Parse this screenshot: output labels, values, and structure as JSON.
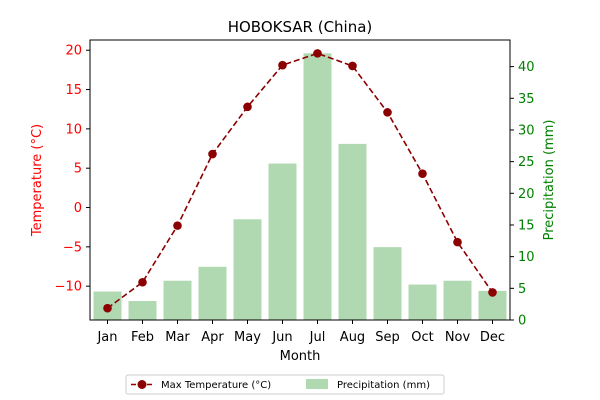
{
  "chart_data": {
    "type": "bar+line",
    "title": "HOBOKSAR (China)",
    "xlabel": "Month",
    "ylabel_left": "Temperature (°C)",
    "ylabel_right": "Precipitation (mm)",
    "categories": [
      "Jan",
      "Feb",
      "Mar",
      "Apr",
      "May",
      "Jun",
      "Jul",
      "Aug",
      "Sep",
      "Oct",
      "Nov",
      "Dec"
    ],
    "ylim_left": [
      -14.3,
      21.3
    ],
    "ylim_right": [
      0,
      44.2
    ],
    "yticks_left": [
      -10,
      -5,
      0,
      5,
      10,
      15,
      20
    ],
    "yticks_right": [
      0,
      5,
      10,
      15,
      20,
      25,
      30,
      35,
      40
    ],
    "series": [
      {
        "name": "Max Temperature (°C)",
        "kind": "line",
        "axis": "left",
        "color": "#8b0000",
        "values": [
          -12.8,
          -9.5,
          -2.3,
          6.8,
          12.8,
          18.1,
          19.6,
          18.0,
          12.1,
          4.3,
          -4.4,
          -10.8
        ]
      },
      {
        "name": "Precipitation (mm)",
        "kind": "bar",
        "axis": "right",
        "color": "#b1d9b1",
        "values": [
          4.5,
          3.0,
          6.2,
          8.4,
          15.9,
          24.7,
          42.1,
          27.8,
          11.5,
          5.6,
          6.2,
          4.6
        ]
      }
    ],
    "legend_position": "bottom-center",
    "colors": {
      "left_axis": "#ff0000",
      "right_axis": "#008000",
      "line": "#8b0000",
      "bar": "#b1d9b1"
    }
  }
}
